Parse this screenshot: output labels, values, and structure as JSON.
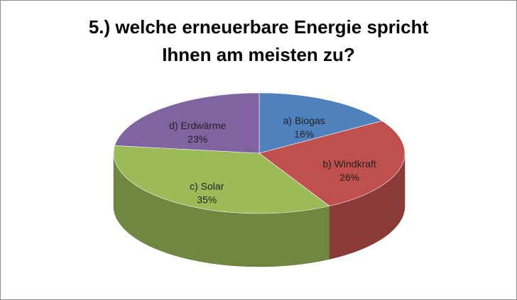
{
  "chart_data": {
    "type": "pie3d",
    "title": [
      "5.) welche erneuerbare Energie spricht",
      "Ihnen am meisten zu?"
    ],
    "categories": [
      "a) Biogas",
      "b) Windkraft",
      "c) Solar",
      "d) Erdwärme"
    ],
    "values": [
      16,
      26,
      35,
      23
    ],
    "value_labels": [
      "16%",
      "26%",
      "35%",
      "23%"
    ],
    "colors": [
      "#4f81bd",
      "#c0504d",
      "#9bbb59",
      "#8064a2"
    ]
  }
}
